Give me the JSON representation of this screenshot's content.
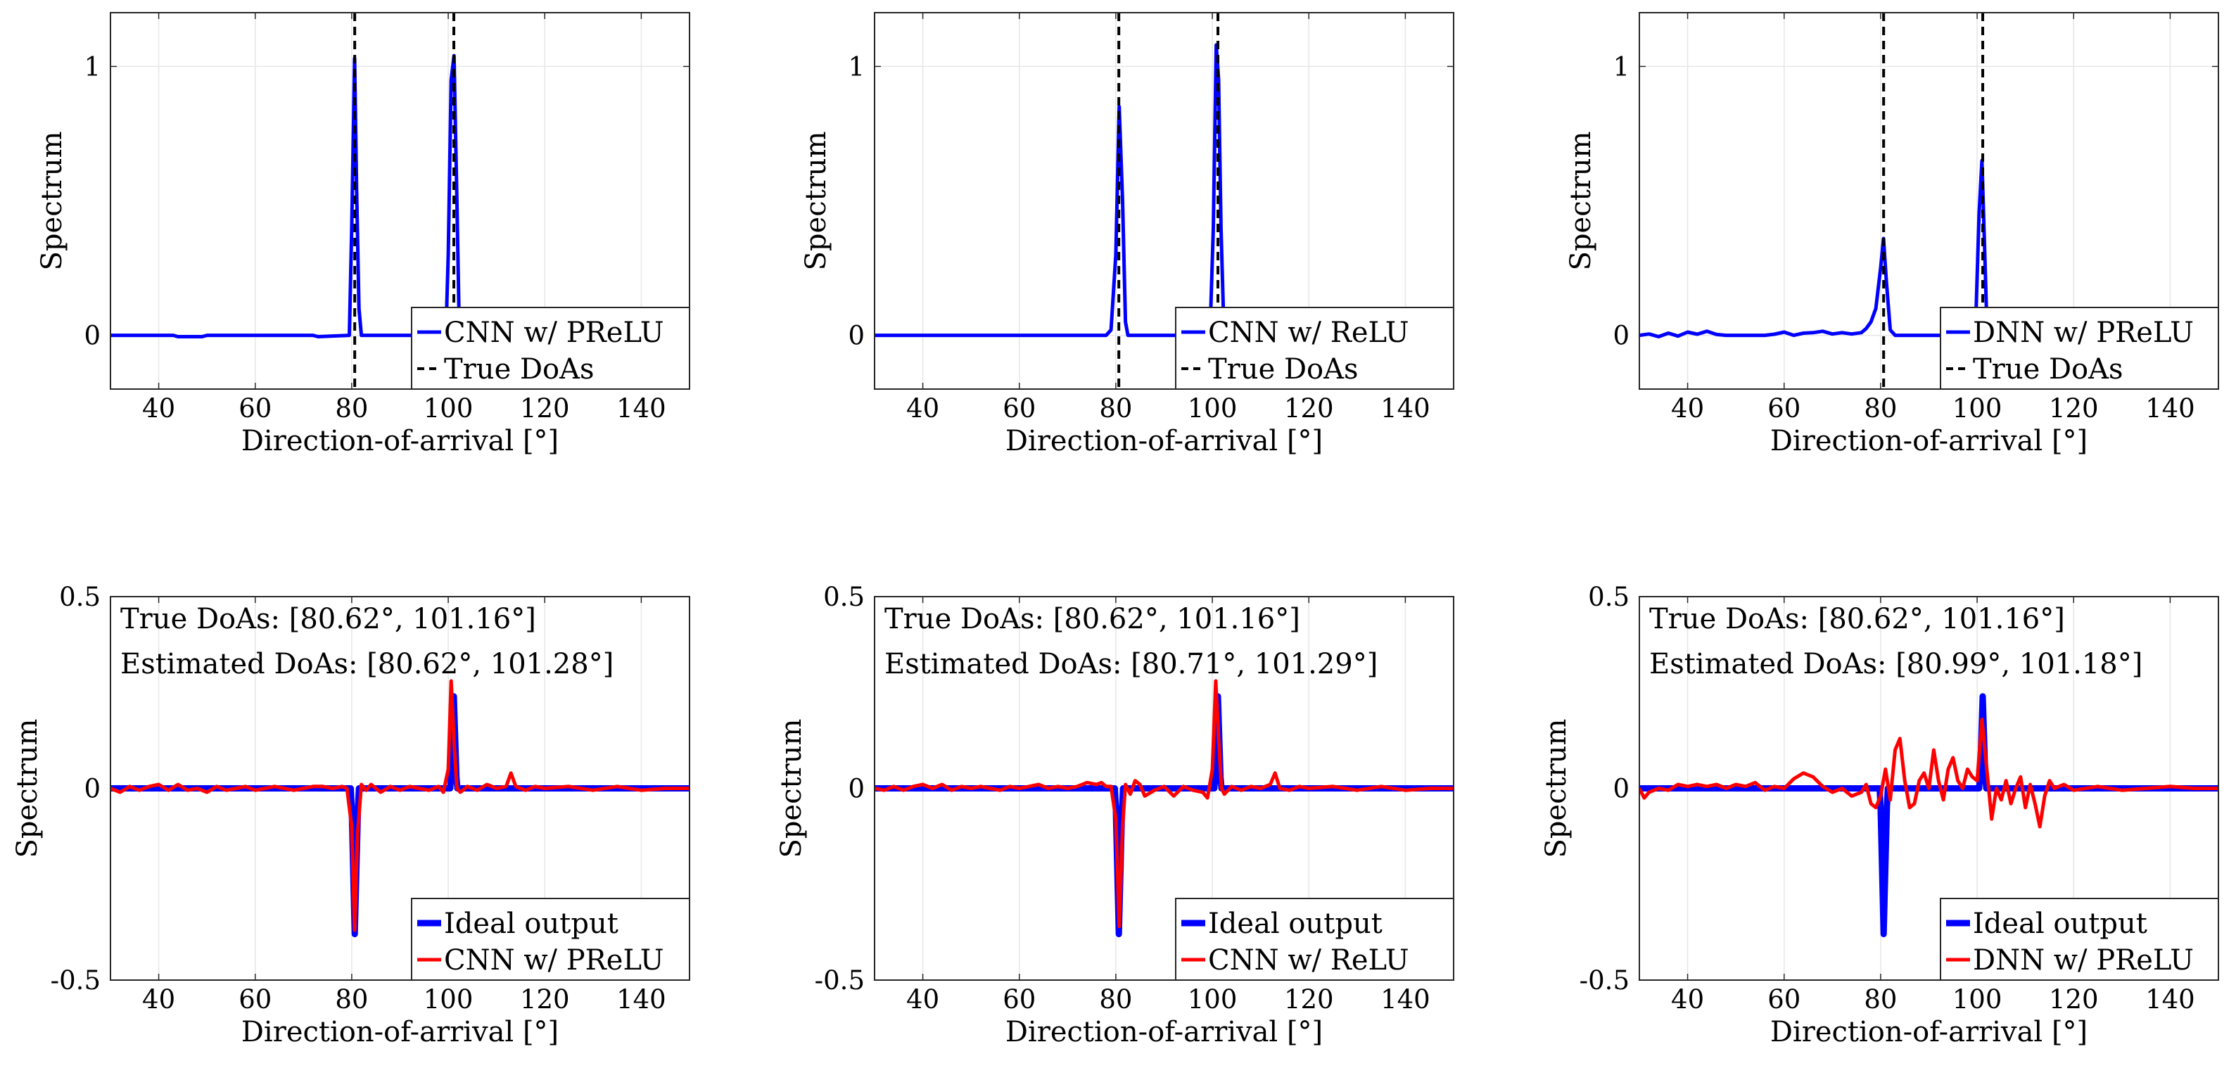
{
  "chart_data": [
    {
      "type": "line",
      "xlabel": "Direction-of-arrival [°]",
      "ylabel": "Spectrum",
      "xlim": [
        30,
        150
      ],
      "ylim": [
        -0.2,
        1.2
      ],
      "xticks": [
        40,
        60,
        80,
        100,
        120,
        140
      ],
      "yticks": [
        0,
        1
      ],
      "ytick_labels": [
        "0",
        "1"
      ],
      "grid": true,
      "legend_position": "bottom-right",
      "series": [
        {
          "name": "CNN w/ PReLU",
          "color": "#0000ff",
          "style": "solid",
          "x": [
            30,
            43,
            44,
            49,
            50,
            72,
            73,
            79.5,
            80,
            80.6,
            81,
            81.5,
            82,
            99.5,
            100,
            100.6,
            101.2,
            101.8,
            102.3,
            103,
            150
          ],
          "y": [
            0,
            0,
            -0.005,
            -0.005,
            0,
            0,
            -0.005,
            0,
            0.4,
            1.03,
            0.55,
            0.1,
            0,
            0,
            0.3,
            0.95,
            1.04,
            0.5,
            0,
            0,
            0
          ]
        },
        {
          "name": "True DoAs",
          "color": "#000000",
          "style": "dashed",
          "x": [
            80.62,
            101.16
          ]
        }
      ]
    },
    {
      "type": "line",
      "xlabel": "Direction-of-arrival [°]",
      "ylabel": "Spectrum",
      "xlim": [
        30,
        150
      ],
      "ylim": [
        -0.2,
        1.2
      ],
      "xticks": [
        40,
        60,
        80,
        100,
        120,
        140
      ],
      "yticks": [
        0,
        1
      ],
      "ytick_labels": [
        "0",
        "1"
      ],
      "grid": true,
      "legend_position": "bottom-right",
      "series": [
        {
          "name": "CNN w/ ReLU",
          "color": "#0000ff",
          "style": "solid",
          "x": [
            30,
            78,
            79,
            80,
            80.7,
            81.4,
            82,
            82.5,
            99.5,
            100.2,
            100.8,
            101.3,
            101.8,
            102.4,
            103,
            150
          ],
          "y": [
            0,
            0,
            0.02,
            0.3,
            0.85,
            0.5,
            0.05,
            0,
            0,
            0.4,
            1.08,
            0.95,
            0.4,
            0.02,
            0,
            0
          ]
        },
        {
          "name": "True DoAs",
          "color": "#000000",
          "style": "dashed",
          "x": [
            80.62,
            101.16
          ]
        }
      ]
    },
    {
      "type": "line",
      "xlabel": "Direction-of-arrival [°]",
      "ylabel": "Spectrum",
      "xlim": [
        30,
        150
      ],
      "ylim": [
        -0.2,
        1.2
      ],
      "xticks": [
        40,
        60,
        80,
        100,
        120,
        140
      ],
      "yticks": [
        0,
        1
      ],
      "ytick_labels": [
        "0",
        "1"
      ],
      "grid": true,
      "legend_position": "bottom-right",
      "series": [
        {
          "name": "DNN w/ PReLU",
          "color": "#0000ff",
          "style": "solid",
          "x": [
            30,
            32,
            34,
            36,
            38,
            40,
            42,
            44,
            46,
            48,
            50,
            52,
            54,
            56,
            58,
            60,
            62,
            64,
            66,
            68,
            70,
            72,
            74,
            76,
            77,
            78,
            79,
            80,
            80.6,
            81.2,
            82,
            83,
            84,
            86,
            88,
            90,
            92,
            94,
            96,
            98,
            99,
            99.8,
            100.4,
            101,
            101.5,
            102,
            103,
            150
          ],
          "y": [
            0,
            0.005,
            -0.005,
            0.008,
            -0.003,
            0.012,
            0.004,
            0.015,
            0.003,
            0,
            0,
            0,
            0,
            0,
            0.004,
            0.012,
            0,
            0.008,
            0.01,
            0.015,
            0.005,
            0.01,
            0.005,
            0.01,
            0.025,
            0.05,
            0.1,
            0.25,
            0.36,
            0.2,
            0.02,
            0,
            0,
            0,
            0,
            0,
            0,
            0,
            0,
            0,
            0,
            0.1,
            0.45,
            0.65,
            0.35,
            0.05,
            0,
            0
          ]
        },
        {
          "name": "True DoAs",
          "color": "#000000",
          "style": "dashed",
          "x": [
            80.62,
            101.16
          ]
        }
      ]
    },
    {
      "type": "line",
      "xlabel": "Direction-of-arrival [°]",
      "ylabel": "Spectrum",
      "xlim": [
        30,
        150
      ],
      "ylim": [
        -0.5,
        0.5
      ],
      "xticks": [
        40,
        60,
        80,
        100,
        120,
        140
      ],
      "yticks": [
        -0.5,
        0,
        0.5
      ],
      "ytick_labels": [
        "-0.5",
        "0",
        "0.5"
      ],
      "grid": true,
      "legend_position": "bottom-right",
      "annotation": [
        "True DoAs: [80.62°, 101.16°]",
        "Estimated DoAs: [80.62°, 101.28°]"
      ],
      "series": [
        {
          "name": "Ideal output",
          "color": "#0000ff",
          "style": "thick",
          "x": [
            30,
            79.8,
            80,
            80.62,
            81.3,
            81.5,
            100.4,
            100.6,
            101.16,
            101.7,
            101.9,
            150
          ],
          "y": [
            0,
            0,
            -0.05,
            -0.38,
            -0.05,
            0,
            0,
            0.03,
            0.24,
            0.03,
            0,
            0
          ]
        },
        {
          "name": "CNN w/ PReLU",
          "color": "#ff0000",
          "style": "solid",
          "x": [
            30,
            32,
            34,
            36,
            38,
            40,
            42,
            44,
            46,
            48,
            50,
            52,
            54,
            56,
            58,
            60,
            62,
            64,
            66,
            68,
            70,
            72,
            74,
            76,
            78,
            79,
            80,
            80.6,
            81.2,
            82,
            83,
            84,
            86,
            88,
            90,
            92,
            94,
            96,
            98,
            99,
            100,
            100.6,
            101.2,
            101.8,
            102.5,
            104,
            106,
            108,
            110,
            112,
            113,
            114,
            116,
            118,
            120,
            125,
            130,
            135,
            140,
            145,
            150
          ],
          "y": [
            0,
            -0.01,
            0.005,
            -0.005,
            0.005,
            0.01,
            -0.005,
            0.01,
            -0.005,
            0,
            -0.01,
            0.005,
            -0.005,
            0,
            0.005,
            -0.005,
            0,
            0.005,
            0,
            -0.005,
            0,
            0.005,
            0.005,
            0,
            0.005,
            0.0,
            -0.1,
            -0.37,
            -0.12,
            0.01,
            -0.005,
            0.01,
            -0.01,
            0.005,
            -0.005,
            0.005,
            0,
            -0.005,
            0.005,
            -0.01,
            0.05,
            0.28,
            0.12,
            0.0,
            -0.01,
            0.005,
            -0.005,
            0.01,
            0.0,
            0.005,
            0.04,
            0.005,
            -0.005,
            0.005,
            0,
            0.005,
            -0.005,
            0.005,
            -0.005,
            0,
            0
          ]
        }
      ]
    },
    {
      "type": "line",
      "xlabel": "Direction-of-arrival [°]",
      "ylabel": "Spectrum",
      "xlim": [
        30,
        150
      ],
      "ylim": [
        -0.5,
        0.5
      ],
      "xticks": [
        40,
        60,
        80,
        100,
        120,
        140
      ],
      "yticks": [
        -0.5,
        0,
        0.5
      ],
      "ytick_labels": [
        "-0.5",
        "0",
        "0.5"
      ],
      "grid": true,
      "legend_position": "bottom-right",
      "annotation": [
        "True DoAs: [80.62°, 101.16°]",
        "Estimated DoAs: [80.71°, 101.29°]"
      ],
      "series": [
        {
          "name": "Ideal output",
          "color": "#0000ff",
          "style": "thick",
          "x": [
            30,
            79.8,
            80,
            80.62,
            81.3,
            81.5,
            100.4,
            100.6,
            101.16,
            101.7,
            101.9,
            150
          ],
          "y": [
            0,
            0,
            -0.05,
            -0.38,
            -0.05,
            0,
            0,
            0.03,
            0.24,
            0.03,
            0,
            0
          ]
        },
        {
          "name": "CNN w/ ReLU",
          "color": "#ff0000",
          "style": "solid",
          "x": [
            30,
            32,
            34,
            36,
            38,
            40,
            42,
            44,
            46,
            48,
            50,
            52,
            54,
            56,
            58,
            60,
            62,
            64,
            66,
            68,
            70,
            72,
            74,
            76,
            77,
            78,
            79,
            80,
            80.7,
            81.4,
            82,
            83,
            84,
            85,
            86,
            88,
            90,
            92,
            94,
            96,
            98,
            99,
            100,
            100.7,
            101.3,
            101.9,
            102.5,
            104,
            106,
            108,
            110,
            112,
            113,
            114,
            116,
            118,
            120,
            125,
            130,
            135,
            140,
            145,
            150
          ],
          "y": [
            0,
            -0.005,
            0.005,
            -0.005,
            0.005,
            0.01,
            0,
            0.01,
            -0.005,
            0.005,
            0,
            0.005,
            0,
            -0.005,
            0.005,
            0,
            0.005,
            0.01,
            0,
            0.005,
            0.0,
            0.005,
            0.015,
            0.01,
            0.015,
            0.005,
            0.005,
            -0.08,
            -0.36,
            -0.1,
            0.01,
            -0.015,
            0.02,
            0.01,
            -0.02,
            -0.005,
            0.005,
            -0.02,
            0.005,
            -0.005,
            -0.01,
            -0.025,
            0.05,
            0.28,
            0.13,
            0.0,
            -0.015,
            0.005,
            -0.005,
            0.005,
            0.0,
            0.01,
            0.04,
            0.0,
            -0.005,
            0.005,
            0,
            0.005,
            -0.005,
            0.005,
            -0.005,
            0,
            0
          ]
        }
      ]
    },
    {
      "type": "line",
      "xlabel": "Direction-of-arrival [°]",
      "ylabel": "Spectrum",
      "xlim": [
        30,
        150
      ],
      "ylim": [
        -0.5,
        0.5
      ],
      "xticks": [
        40,
        60,
        80,
        100,
        120,
        140
      ],
      "yticks": [
        -0.5,
        0,
        0.5
      ],
      "ytick_labels": [
        "-0.5",
        "0",
        "0.5"
      ],
      "grid": true,
      "legend_position": "bottom-right",
      "annotation": [
        "True DoAs: [80.62°, 101.16°]",
        "Estimated DoAs: [80.99°, 101.18°]"
      ],
      "series": [
        {
          "name": "Ideal output",
          "color": "#0000ff",
          "style": "thick",
          "x": [
            30,
            79.8,
            80,
            80.62,
            81.3,
            81.5,
            100.4,
            100.6,
            101.16,
            101.7,
            101.9,
            150
          ],
          "y": [
            0,
            0,
            -0.05,
            -0.38,
            -0.05,
            0,
            0,
            0.03,
            0.24,
            0.03,
            0,
            0
          ]
        },
        {
          "name": "DNN w/ PReLU",
          "color": "#ff0000",
          "style": "solid",
          "x": [
            30,
            31,
            32,
            34,
            36,
            38,
            40,
            42,
            44,
            46,
            48,
            50,
            52,
            54,
            56,
            58,
            60,
            62,
            64,
            66,
            68,
            70,
            72,
            74,
            76,
            77,
            78,
            79,
            80,
            81,
            82,
            83,
            84,
            85,
            86,
            87,
            88,
            89,
            90,
            91,
            92,
            93,
            94,
            95,
            96,
            97,
            98,
            99,
            100,
            101,
            102,
            103,
            104,
            105,
            106,
            107,
            108,
            109,
            110,
            111,
            112,
            113,
            114,
            115,
            116,
            118,
            120,
            125,
            130,
            135,
            140,
            145,
            150
          ],
          "y": [
            0,
            -0.025,
            -0.01,
            0.0,
            -0.005,
            0.01,
            0.005,
            0.01,
            0.005,
            0.01,
            0.0,
            0.01,
            0.005,
            0.015,
            -0.005,
            0.005,
            0.0,
            0.025,
            0.04,
            0.03,
            0.005,
            -0.01,
            0.0,
            -0.02,
            -0.01,
            0.01,
            -0.04,
            -0.05,
            -0.02,
            0.05,
            -0.03,
            0.1,
            0.13,
            0.02,
            -0.05,
            -0.04,
            0.02,
            0.04,
            0.0,
            0.1,
            0.02,
            -0.03,
            0.05,
            0.08,
            0.02,
            0.0,
            0.05,
            0.03,
            0.02,
            0.18,
            0.05,
            -0.08,
            0.0,
            -0.03,
            0.02,
            -0.04,
            0.0,
            0.03,
            -0.05,
            0.01,
            -0.04,
            -0.1,
            -0.02,
            0.02,
            0.0,
            0.01,
            -0.005,
            0.005,
            -0.005,
            0.0,
            0.005,
            0.0,
            0.0
          ]
        }
      ]
    }
  ]
}
